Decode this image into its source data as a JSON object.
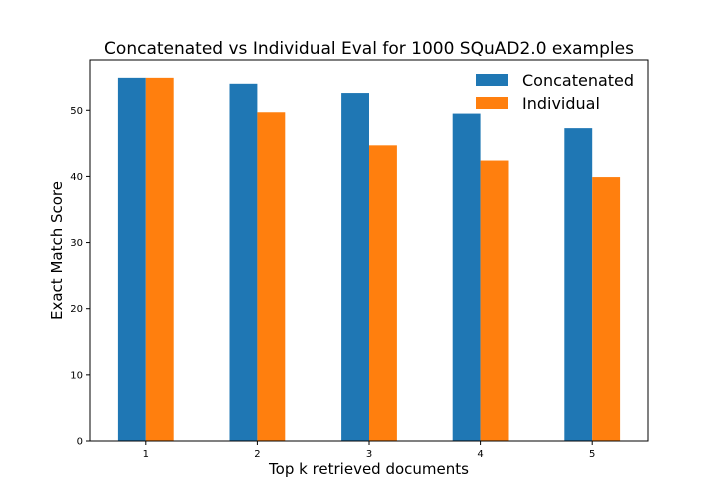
{
  "chart_data": {
    "type": "bar",
    "title": "Concatenated vs Individual Eval for 1000 SQuAD2.0 examples",
    "xlabel": "Top k retrieved documents",
    "ylabel": "Exact Match Score",
    "categories": [
      "1",
      "2",
      "3",
      "4",
      "5"
    ],
    "series": [
      {
        "name": "Concatenated",
        "color": "#1f77b4",
        "values": [
          54.9,
          54.0,
          52.6,
          49.5,
          47.3
        ]
      },
      {
        "name": "Individual",
        "color": "#ff7f0e",
        "values": [
          54.9,
          49.7,
          44.7,
          42.4,
          39.9
        ]
      }
    ],
    "ylim": [
      0,
      57.6
    ],
    "yticks": [
      0,
      10,
      20,
      30,
      40,
      50
    ],
    "grid": false,
    "legend": "top-right"
  }
}
